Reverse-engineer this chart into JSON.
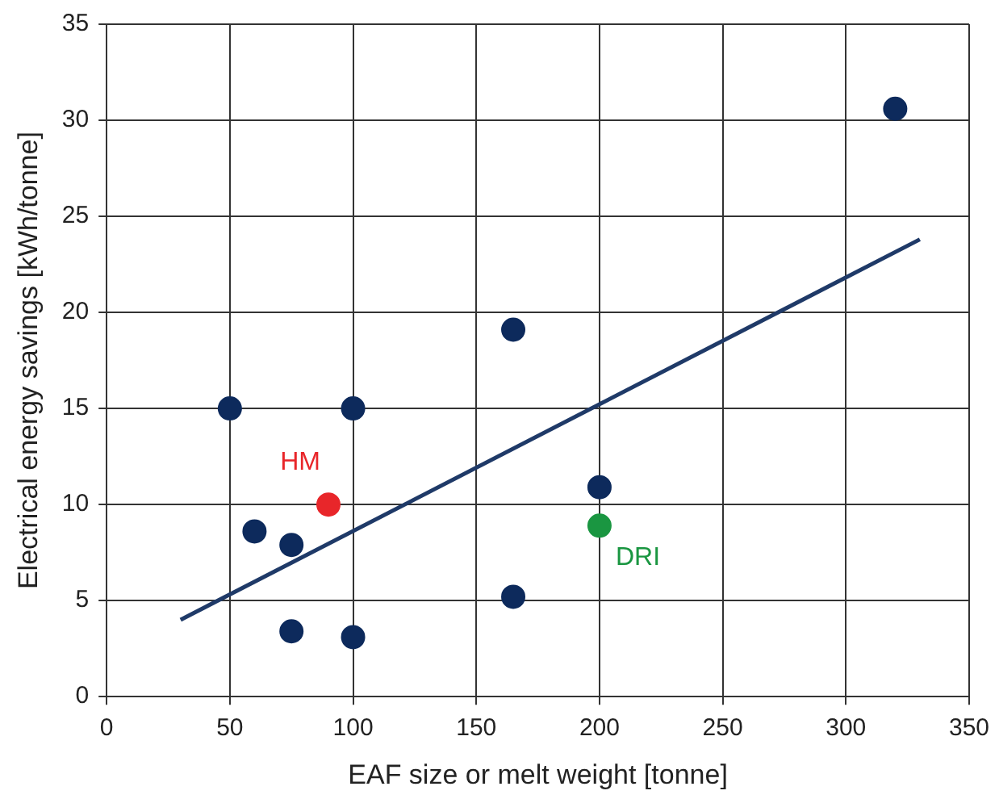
{
  "chart_data": {
    "type": "scatter",
    "xlabel": "EAF size or melt weight [tonne]",
    "ylabel": "Electrical energy savings [kWh/tonne]",
    "xlim": [
      0,
      350
    ],
    "xticks": [
      0,
      50,
      100,
      150,
      200,
      250,
      300,
      350
    ],
    "ylim": [
      0,
      35
    ],
    "yticks": [
      0,
      5,
      10,
      15,
      20,
      25,
      30,
      35
    ],
    "grid": true,
    "legend": false,
    "marker": "circle",
    "series": [
      {
        "color": "#0d2a5c",
        "x": [
          50,
          100,
          60,
          75,
          75,
          100,
          165,
          165,
          200,
          320
        ],
        "values": [
          15,
          15,
          8.6,
          7.9,
          3.4,
          3.1,
          19.1,
          5.2,
          10.9,
          30.6
        ]
      },
      {
        "name": "HM",
        "color": "#e8262a",
        "x": [
          90
        ],
        "values": [
          10
        ]
      },
      {
        "name": "DRI",
        "color": "#1a9641",
        "x": [
          200
        ],
        "values": [
          8.9
        ]
      },
      {
        "type": "line",
        "color": "#1f3a68",
        "marker": "none",
        "x": [
          30,
          330
        ],
        "values": [
          4,
          23.8
        ]
      }
    ]
  }
}
